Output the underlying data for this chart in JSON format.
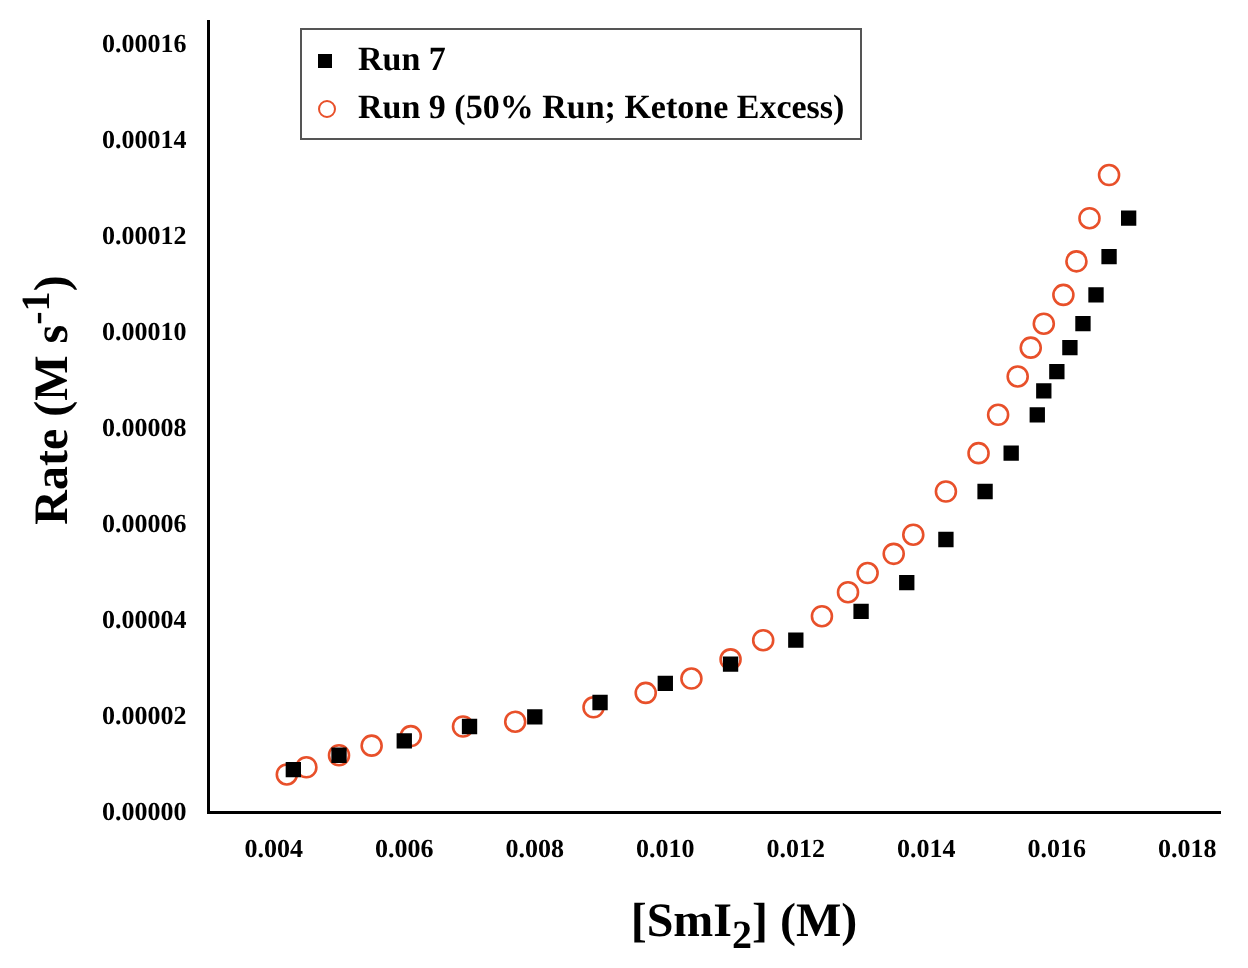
{
  "chart_data": {
    "type": "scatter",
    "xlabel": "[SmI$_{2}$] (M)",
    "ylabel": "Rate (M s$^{-1}$)",
    "legend": "top left",
    "grid": false,
    "xlim": [
      0.003,
      0.0185
    ],
    "ylim": [
      0,
      0.000165
    ],
    "xticks": [
      {
        "value": 0.004,
        "label": "0.004"
      },
      {
        "value": 0.006,
        "label": "0.006"
      },
      {
        "value": 0.008,
        "label": "0.008"
      },
      {
        "value": 0.01,
        "label": "0.010"
      },
      {
        "value": 0.012,
        "label": "0.012"
      },
      {
        "value": 0.014,
        "label": "0.014"
      },
      {
        "value": 0.016,
        "label": "0.016"
      },
      {
        "value": 0.018,
        "label": "0.018"
      }
    ],
    "yticks": [
      {
        "value": 0,
        "label": "0.00000"
      },
      {
        "value": 2e-05,
        "label": "0.00002"
      },
      {
        "value": 4e-05,
        "label": "0.00004"
      },
      {
        "value": 6e-05,
        "label": "0.00006"
      },
      {
        "value": 8e-05,
        "label": "0.00008"
      },
      {
        "value": 0.0001,
        "label": "0.00010"
      },
      {
        "value": 0.00012,
        "label": "0.00012"
      },
      {
        "value": 0.00014,
        "label": "0.00014"
      },
      {
        "value": 0.00016,
        "label": "0.00016"
      }
    ],
    "series": [
      {
        "name": "Run 7",
        "color": "#000000",
        "marker": "square",
        "x": [
          0.0043,
          0.005,
          0.006,
          0.007,
          0.008,
          0.009,
          0.01,
          0.011,
          0.012,
          0.013,
          0.0137,
          0.0143,
          0.0149,
          0.0153,
          0.0157,
          0.0158,
          0.016,
          0.0162,
          0.0164,
          0.0166,
          0.0168,
          0.0171
        ],
        "values": [
          9e-06,
          1.2e-05,
          1.5e-05,
          1.8e-05,
          2e-05,
          2.3e-05,
          2.7e-05,
          3.1e-05,
          3.6e-05,
          4.2e-05,
          4.8e-05,
          5.7e-05,
          6.7e-05,
          7.5e-05,
          8.3e-05,
          8.8e-05,
          9.2e-05,
          9.7e-05,
          0.000102,
          0.000108,
          0.000116,
          0.000124
        ]
      },
      {
        "name": "Run 9 (50% Run; Ketone Excess)",
        "color": "#e8502a",
        "marker": "circle",
        "x": [
          0.0042,
          0.0045,
          0.005,
          0.0055,
          0.0061,
          0.0069,
          0.0077,
          0.0089,
          0.0097,
          0.0104,
          0.011,
          0.0115,
          0.0124,
          0.0128,
          0.0131,
          0.0135,
          0.0138,
          0.0143,
          0.0148,
          0.0151,
          0.0154,
          0.0156,
          0.0158,
          0.0161,
          0.0163,
          0.0165,
          0.0168
        ],
        "values": [
          8e-06,
          9.5e-06,
          1.2e-05,
          1.4e-05,
          1.6e-05,
          1.8e-05,
          1.9e-05,
          2.2e-05,
          2.5e-05,
          2.8e-05,
          3.2e-05,
          3.6e-05,
          4.1e-05,
          4.6e-05,
          5e-05,
          5.4e-05,
          5.8e-05,
          6.7e-05,
          7.5e-05,
          8.3e-05,
          9.1e-05,
          9.7e-05,
          0.000102,
          0.000108,
          0.000115,
          0.000124,
          0.000133
        ]
      }
    ]
  }
}
